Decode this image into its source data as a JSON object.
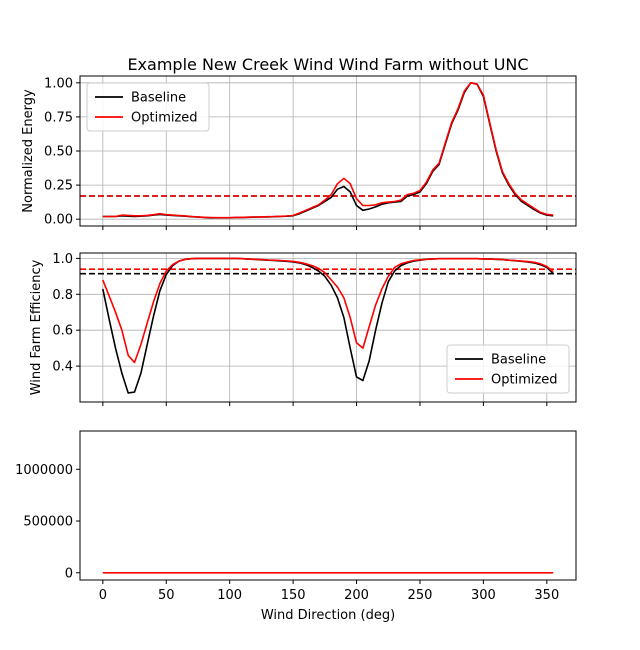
{
  "title": "Example New Creek Wind Wind Farm without UNC",
  "xlabel": "Wind Direction (deg)",
  "colors": {
    "baseline": "#000000",
    "optimized": "#ff0000",
    "grid": "#b0b0b0"
  },
  "chart_data": [
    {
      "type": "line",
      "title": "Example New Creek Wind Wind Farm without UNC",
      "ylabel": "Normalized Energy",
      "xlim": [
        -18,
        373
      ],
      "ylim": [
        -0.05,
        1.05
      ],
      "yticks": [
        0.0,
        0.25,
        0.5,
        0.75,
        1.0
      ],
      "ytick_labels": [
        "0.00",
        "0.25",
        "0.50",
        "0.75",
        "1.00"
      ],
      "xticks": [
        0,
        50,
        100,
        150,
        200,
        250,
        300,
        350
      ],
      "grid": true,
      "legend": "upper left",
      "hlines": [
        {
          "y": 0.17,
          "series": "Baseline",
          "style": "dashed"
        },
        {
          "y": 0.17,
          "series": "Optimized",
          "style": "dashed"
        }
      ],
      "series": [
        {
          "name": "Baseline",
          "x": [
            0,
            5,
            10,
            15,
            20,
            25,
            30,
            35,
            40,
            45,
            50,
            55,
            60,
            65,
            70,
            75,
            80,
            85,
            90,
            95,
            100,
            105,
            110,
            115,
            120,
            125,
            130,
            135,
            140,
            145,
            150,
            155,
            160,
            165,
            170,
            175,
            180,
            185,
            190,
            195,
            200,
            205,
            210,
            215,
            220,
            225,
            230,
            235,
            240,
            245,
            250,
            255,
            260,
            265,
            270,
            275,
            280,
            285,
            290,
            295,
            300,
            305,
            310,
            315,
            320,
            325,
            330,
            335,
            340,
            345,
            350,
            355
          ],
          "y": [
            0.02,
            0.02,
            0.02,
            0.025,
            0.022,
            0.02,
            0.022,
            0.025,
            0.03,
            0.035,
            0.03,
            0.028,
            0.025,
            0.022,
            0.018,
            0.015,
            0.012,
            0.01,
            0.01,
            0.01,
            0.01,
            0.012,
            0.012,
            0.014,
            0.015,
            0.016,
            0.017,
            0.018,
            0.02,
            0.022,
            0.025,
            0.04,
            0.06,
            0.08,
            0.1,
            0.13,
            0.16,
            0.22,
            0.24,
            0.2,
            0.1,
            0.065,
            0.075,
            0.09,
            0.11,
            0.12,
            0.125,
            0.13,
            0.17,
            0.18,
            0.2,
            0.26,
            0.35,
            0.4,
            0.55,
            0.7,
            0.8,
            0.93,
            1.0,
            0.99,
            0.9,
            0.7,
            0.5,
            0.34,
            0.25,
            0.18,
            0.13,
            0.1,
            0.07,
            0.045,
            0.03,
            0.025
          ]
        },
        {
          "name": "Optimized",
          "x": [
            0,
            5,
            10,
            15,
            20,
            25,
            30,
            35,
            40,
            45,
            50,
            55,
            60,
            65,
            70,
            75,
            80,
            85,
            90,
            95,
            100,
            105,
            110,
            115,
            120,
            125,
            130,
            135,
            140,
            145,
            150,
            155,
            160,
            165,
            170,
            175,
            180,
            185,
            190,
            195,
            200,
            205,
            210,
            215,
            220,
            225,
            230,
            235,
            240,
            245,
            250,
            255,
            260,
            265,
            270,
            275,
            280,
            285,
            290,
            295,
            300,
            305,
            310,
            315,
            320,
            325,
            330,
            335,
            340,
            345,
            350,
            355
          ],
          "y": [
            0.02,
            0.02,
            0.02,
            0.03,
            0.028,
            0.025,
            0.025,
            0.028,
            0.033,
            0.04,
            0.033,
            0.03,
            0.027,
            0.024,
            0.02,
            0.017,
            0.014,
            0.012,
            0.011,
            0.011,
            0.011,
            0.013,
            0.013,
            0.015,
            0.016,
            0.017,
            0.018,
            0.019,
            0.021,
            0.023,
            0.027,
            0.045,
            0.065,
            0.085,
            0.105,
            0.14,
            0.18,
            0.26,
            0.3,
            0.26,
            0.15,
            0.1,
            0.1,
            0.105,
            0.12,
            0.125,
            0.13,
            0.14,
            0.18,
            0.19,
            0.21,
            0.27,
            0.36,
            0.41,
            0.56,
            0.71,
            0.81,
            0.94,
            1.0,
            0.99,
            0.91,
            0.71,
            0.51,
            0.35,
            0.26,
            0.19,
            0.14,
            0.11,
            0.08,
            0.05,
            0.035,
            0.03
          ]
        }
      ]
    },
    {
      "type": "line",
      "ylabel": "Wind Farm Efficiency",
      "xlim": [
        -18,
        373
      ],
      "ylim": [
        0.2,
        1.03
      ],
      "yticks": [
        0.4,
        0.6,
        0.8,
        1.0
      ],
      "ytick_labels": [
        "0.4",
        "0.6",
        "0.8",
        "1.0"
      ],
      "xticks": [
        0,
        50,
        100,
        150,
        200,
        250,
        300,
        350
      ],
      "grid": true,
      "legend": "lower right",
      "hlines": [
        {
          "y": 0.915,
          "series": "Baseline",
          "style": "dashed"
        },
        {
          "y": 0.94,
          "series": "Optimized",
          "style": "dashed"
        }
      ],
      "series": [
        {
          "name": "Baseline",
          "x": [
            0,
            5,
            10,
            15,
            20,
            25,
            30,
            35,
            40,
            45,
            50,
            55,
            60,
            65,
            70,
            75,
            80,
            85,
            90,
            95,
            100,
            105,
            110,
            115,
            120,
            125,
            130,
            135,
            140,
            145,
            150,
            155,
            160,
            165,
            170,
            175,
            180,
            185,
            190,
            195,
            200,
            205,
            210,
            215,
            220,
            225,
            230,
            235,
            240,
            245,
            250,
            255,
            260,
            265,
            270,
            275,
            280,
            285,
            290,
            295,
            300,
            305,
            310,
            315,
            320,
            325,
            330,
            335,
            340,
            345,
            350,
            355
          ],
          "y": [
            0.83,
            0.66,
            0.5,
            0.36,
            0.25,
            0.255,
            0.36,
            0.52,
            0.68,
            0.82,
            0.91,
            0.96,
            0.985,
            0.995,
            0.998,
            1.0,
            1.0,
            1.0,
            1.0,
            1.0,
            1.0,
            1.0,
            0.998,
            0.996,
            0.994,
            0.992,
            0.99,
            0.988,
            0.986,
            0.984,
            0.98,
            0.975,
            0.965,
            0.95,
            0.93,
            0.9,
            0.85,
            0.78,
            0.67,
            0.5,
            0.34,
            0.32,
            0.43,
            0.6,
            0.75,
            0.87,
            0.93,
            0.96,
            0.975,
            0.985,
            0.99,
            0.995,
            0.997,
            0.998,
            0.998,
            0.998,
            0.998,
            0.998,
            0.998,
            0.998,
            0.997,
            0.996,
            0.995,
            0.993,
            0.99,
            0.987,
            0.984,
            0.98,
            0.975,
            0.965,
            0.95,
            0.915
          ]
        },
        {
          "name": "Optimized",
          "x": [
            0,
            5,
            10,
            15,
            20,
            25,
            30,
            35,
            40,
            45,
            50,
            55,
            60,
            65,
            70,
            75,
            80,
            85,
            90,
            95,
            100,
            105,
            110,
            115,
            120,
            125,
            130,
            135,
            140,
            145,
            150,
            155,
            160,
            165,
            170,
            175,
            180,
            185,
            190,
            195,
            200,
            205,
            210,
            215,
            220,
            225,
            230,
            235,
            240,
            245,
            250,
            255,
            260,
            265,
            270,
            275,
            280,
            285,
            290,
            295,
            300,
            305,
            310,
            315,
            320,
            325,
            330,
            335,
            340,
            345,
            350,
            355
          ],
          "y": [
            0.88,
            0.79,
            0.7,
            0.6,
            0.46,
            0.42,
            0.52,
            0.64,
            0.76,
            0.86,
            0.93,
            0.965,
            0.985,
            0.995,
            0.998,
            1.0,
            1.0,
            1.0,
            1.0,
            1.0,
            1.0,
            1.0,
            0.998,
            0.996,
            0.995,
            0.993,
            0.991,
            0.99,
            0.988,
            0.986,
            0.983,
            0.978,
            0.97,
            0.96,
            0.945,
            0.92,
            0.88,
            0.84,
            0.78,
            0.67,
            0.53,
            0.5,
            0.62,
            0.74,
            0.83,
            0.9,
            0.95,
            0.97,
            0.98,
            0.988,
            0.992,
            0.995,
            0.997,
            0.998,
            0.998,
            0.998,
            0.998,
            0.998,
            0.998,
            0.998,
            0.997,
            0.996,
            0.995,
            0.993,
            0.99,
            0.988,
            0.985,
            0.982,
            0.978,
            0.97,
            0.955,
            0.925
          ]
        }
      ]
    },
    {
      "type": "line",
      "xlabel": "Wind Direction (deg)",
      "xlim": [
        -18,
        373
      ],
      "ylim": [
        -70000,
        1370000
      ],
      "yticks": [
        0,
        500000,
        1000000
      ],
      "ytick_labels": [
        "0",
        "500000",
        "1000000"
      ],
      "xticks": [
        0,
        50,
        100,
        150,
        200,
        250,
        300,
        350
      ],
      "xtick_labels": [
        "0",
        "50",
        "100",
        "150",
        "200",
        "250",
        "300",
        "350"
      ],
      "grid": false,
      "series": [
        {
          "name": "",
          "x": [
            0,
            355
          ],
          "y": [
            0,
            0
          ]
        }
      ]
    }
  ]
}
